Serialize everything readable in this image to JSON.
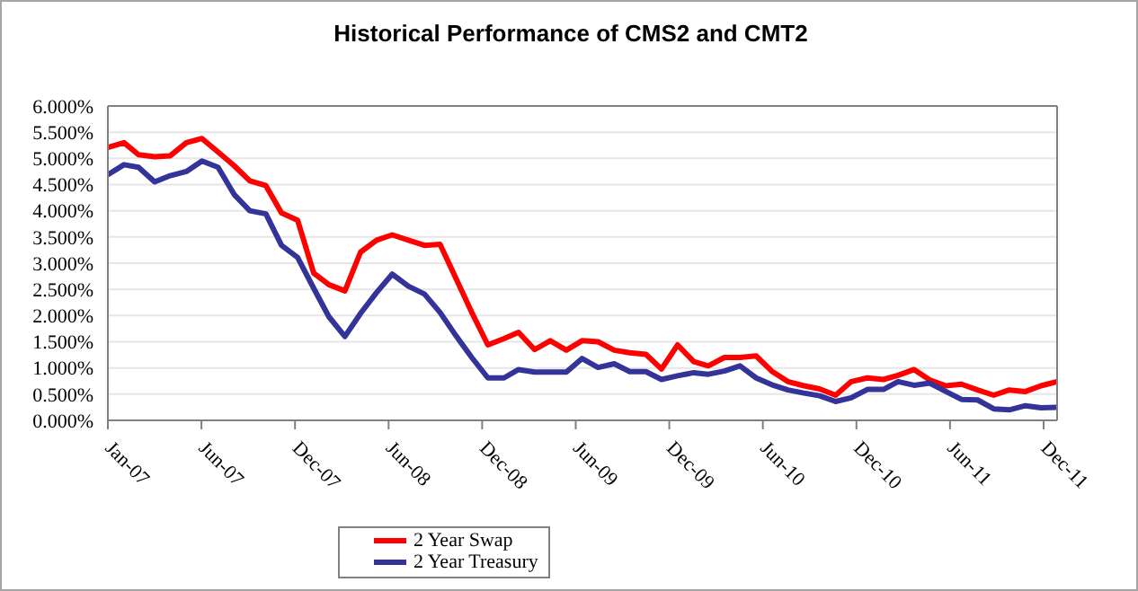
{
  "chart_data": {
    "type": "line",
    "title": "Historical Performance of CMS2 and CMT2",
    "x": [
      "2007-01",
      "2007-02",
      "2007-03",
      "2007-04",
      "2007-05",
      "2007-06",
      "2007-07",
      "2007-08",
      "2007-09",
      "2007-10",
      "2007-11",
      "2007-12",
      "2008-01",
      "2008-02",
      "2008-03",
      "2008-04",
      "2008-05",
      "2008-06",
      "2008-07",
      "2008-08",
      "2008-09",
      "2008-10",
      "2008-11",
      "2008-12",
      "2009-01",
      "2009-02",
      "2009-03",
      "2009-04",
      "2009-05",
      "2009-06",
      "2009-07",
      "2009-08",
      "2009-09",
      "2009-10",
      "2009-11",
      "2009-12",
      "2010-01",
      "2010-02",
      "2010-03",
      "2010-04",
      "2010-05",
      "2010-06",
      "2010-07",
      "2010-08",
      "2010-09",
      "2010-10",
      "2010-11",
      "2010-12",
      "2011-01",
      "2011-02",
      "2011-03",
      "2011-04",
      "2011-05",
      "2011-06",
      "2011-07",
      "2011-08",
      "2011-09",
      "2011-10",
      "2011-11",
      "2011-12",
      "2012-01"
    ],
    "series": [
      {
        "name": "2 Year Swap",
        "color": "#ff0000",
        "values": [
          5.21,
          5.3,
          5.07,
          5.03,
          5.05,
          5.3,
          5.38,
          5.12,
          4.86,
          4.57,
          4.48,
          3.96,
          3.82,
          2.81,
          2.59,
          2.47,
          3.21,
          3.44,
          3.54,
          3.44,
          3.34,
          3.36,
          2.7,
          2.06,
          1.44,
          1.56,
          1.68,
          1.35,
          1.52,
          1.34,
          1.52,
          1.5,
          1.34,
          1.29,
          1.26,
          0.98,
          1.44,
          1.12,
          1.04,
          1.2,
          1.2,
          1.23,
          0.94,
          0.74,
          0.66,
          0.6,
          0.48,
          0.74,
          0.81,
          0.78,
          0.86,
          0.97,
          0.77,
          0.66,
          0.69,
          0.58,
          0.48,
          0.58,
          0.55,
          0.66,
          0.74
        ]
      },
      {
        "name": "2 Year Treasury",
        "color": "#333399",
        "values": [
          4.69,
          4.88,
          4.83,
          4.55,
          4.67,
          4.75,
          4.95,
          4.83,
          4.31,
          4.0,
          3.94,
          3.34,
          3.11,
          2.52,
          1.98,
          1.6,
          2.04,
          2.44,
          2.79,
          2.56,
          2.41,
          2.06,
          1.61,
          1.2,
          0.81,
          0.81,
          0.97,
          0.92,
          0.92,
          0.92,
          1.18,
          1.01,
          1.08,
          0.93,
          0.93,
          0.78,
          0.85,
          0.91,
          0.88,
          0.94,
          1.04,
          0.81,
          0.68,
          0.58,
          0.52,
          0.47,
          0.36,
          0.43,
          0.59,
          0.59,
          0.74,
          0.67,
          0.71,
          0.55,
          0.4,
          0.39,
          0.22,
          0.2,
          0.28,
          0.24,
          0.25
        ]
      }
    ],
    "xlim": [
      "2007-01-01",
      "2012-01-01"
    ],
    "xticks": [
      {
        "value": "2007-01-01",
        "label": "Jan-07"
      },
      {
        "value": "2007-06-30",
        "label": "Jun-07"
      },
      {
        "value": "2007-12-27",
        "label": "Dec-07"
      },
      {
        "value": "2008-06-24",
        "label": "Jun-08"
      },
      {
        "value": "2008-12-21",
        "label": "Dec-08"
      },
      {
        "value": "2009-06-19",
        "label": "Jun-09"
      },
      {
        "value": "2009-12-16",
        "label": "Dec-09"
      },
      {
        "value": "2010-06-14",
        "label": "Jun-10"
      },
      {
        "value": "2010-12-11",
        "label": "Dec-10"
      },
      {
        "value": "2011-06-09",
        "label": "Jun-11"
      },
      {
        "value": "2011-12-06",
        "label": "Dec-11"
      }
    ],
    "ylim": [
      0,
      6
    ],
    "yticks": [
      {
        "value": 0,
        "label": "0.000%"
      },
      {
        "value": 0.5,
        "label": "0.500%"
      },
      {
        "value": 1,
        "label": "1.000%"
      },
      {
        "value": 1.5,
        "label": "1.500%"
      },
      {
        "value": 2,
        "label": "2.000%"
      },
      {
        "value": 2.5,
        "label": "2.500%"
      },
      {
        "value": 3,
        "label": "3.000%"
      },
      {
        "value": 3.5,
        "label": "3.500%"
      },
      {
        "value": 4,
        "label": "4.000%"
      },
      {
        "value": 4.5,
        "label": "4.500%"
      },
      {
        "value": 5,
        "label": "5.000%"
      },
      {
        "value": 5.5,
        "label": "5.500%"
      },
      {
        "value": 6,
        "label": "6.000%"
      }
    ],
    "grid": "y",
    "legend": "bottom"
  }
}
